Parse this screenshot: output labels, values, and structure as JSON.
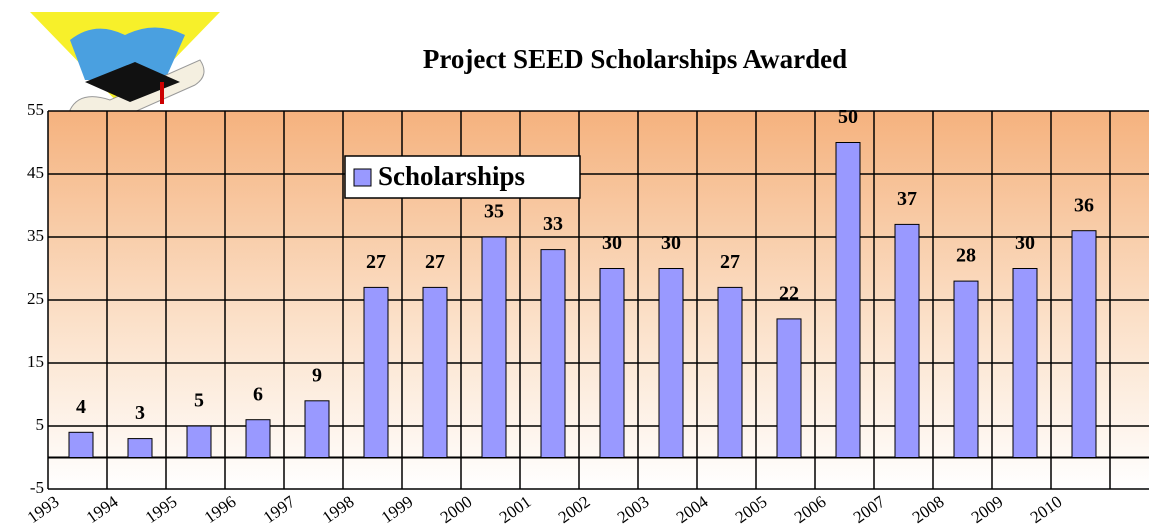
{
  "chart_data": {
    "type": "bar",
    "title": "Project SEED Scholarships Awarded",
    "categories": [
      "1993",
      "1994",
      "1995",
      "1996",
      "1997",
      "1998",
      "1999",
      "2000",
      "2001",
      "2002",
      "2003",
      "2004",
      "2005",
      "2006",
      "2007",
      "2008",
      "2009",
      "2010"
    ],
    "series": [
      {
        "name": "Scholarships",
        "color": "#9999ff",
        "values": [
          4,
          3,
          5,
          6,
          9,
          27,
          27,
          35,
          33,
          30,
          30,
          27,
          22,
          50,
          37,
          28,
          30,
          36
        ]
      }
    ],
    "ylim": [
      -5,
      55
    ],
    "yticks": [
      -5,
      5,
      15,
      25,
      35,
      45,
      55
    ],
    "grid": true
  }
}
